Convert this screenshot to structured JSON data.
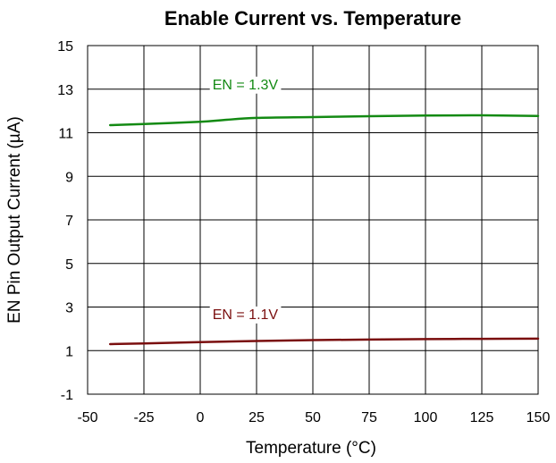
{
  "chart_data": {
    "type": "line",
    "title": "Enable Current vs. Temperature",
    "xlabel": "Temperature (°C)",
    "ylabel": "EN Pin Output Current (µA)",
    "xlim": [
      -50,
      150
    ],
    "ylim": [
      -1,
      15
    ],
    "x_ticks": [
      -50,
      -25,
      0,
      25,
      50,
      75,
      100,
      125,
      150
    ],
    "y_ticks": [
      -1,
      1,
      3,
      5,
      7,
      9,
      11,
      13,
      15
    ],
    "x_tick_labels": [
      "-50",
      "-25",
      "0",
      "25",
      "50",
      "75",
      "100",
      "125",
      "150"
    ],
    "y_tick_labels": [
      "-1",
      "1",
      "3",
      "5",
      "7",
      "9",
      "11",
      "13",
      "15"
    ],
    "grid": true,
    "legend": "inline labels",
    "series": [
      {
        "name": "EN = 1.3V",
        "color": "#138a13",
        "label_at": [
          20,
          13.0
        ],
        "x": [
          -40,
          -25,
          0,
          10,
          25,
          50,
          75,
          100,
          125,
          150
        ],
        "values": [
          11.35,
          11.4,
          11.5,
          11.58,
          11.68,
          11.72,
          11.76,
          11.79,
          11.8,
          11.77
        ]
      },
      {
        "name": "EN =  1.1V",
        "color": "#7a0e0e",
        "label_at": [
          20,
          2.45
        ],
        "x": [
          -40,
          -25,
          0,
          25,
          50,
          75,
          100,
          125,
          150
        ],
        "values": [
          1.3,
          1.33,
          1.39,
          1.44,
          1.48,
          1.51,
          1.53,
          1.54,
          1.55
        ]
      }
    ]
  }
}
